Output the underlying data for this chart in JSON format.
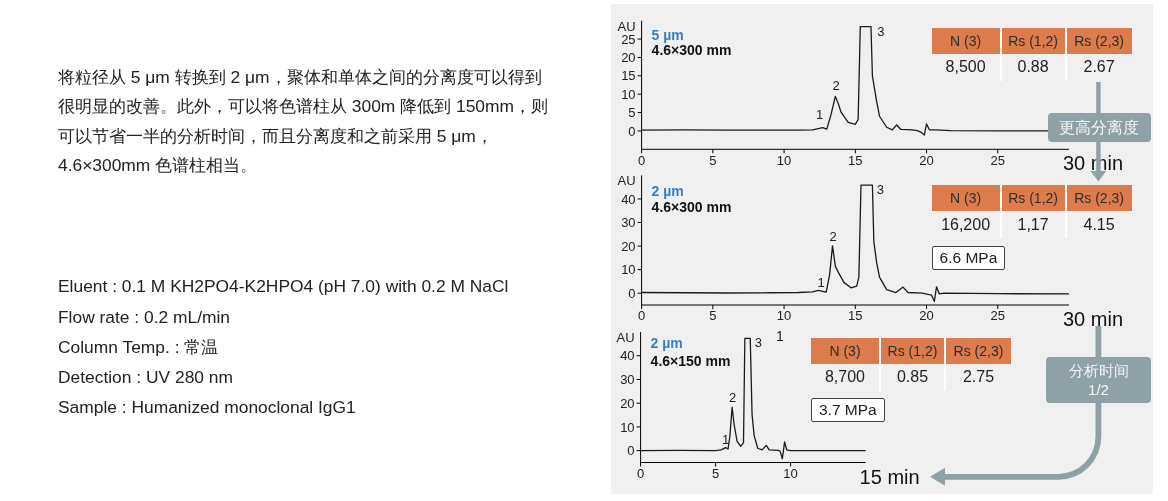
{
  "chart_data": [
    {
      "type": "other",
      "annotations": [
        "将粒径从 5 μm 转换到 2 μm，聚体和单体之间的分离度可以得到很明显的改善。此外，可以将色谱柱从 300m 降低到 150mm，则可以节省一半的分析时间，而且分离度和之前采用 5 μm，4.6×300mm 色谱柱相当。",
        "Eluent : 0.1 M KH2PO4-K2HPO4 (pH 7.0) with 0.2 M NaCl",
        "Flow rate : 0.2 mL/min",
        "Column Temp. : 常温",
        "Detection : UV 280 nm",
        "Sample : Humanized monoclonal IgG1"
      ]
    },
    {
      "type": "line",
      "title": "5 µm",
      "subtitle": "4.6×300 mm",
      "ylabel": "AU",
      "xlabel": "30 min",
      "color": "#1a1a1a",
      "xlim": [
        0,
        30
      ],
      "ylim": [
        -5,
        30
      ],
      "xticks": [
        0,
        5,
        10,
        15,
        20,
        25
      ],
      "yticks": [
        0,
        5,
        10,
        15,
        20,
        25
      ],
      "x": [
        0,
        3,
        6,
        9,
        10,
        11,
        12,
        12.4,
        12.7,
        13.0,
        13.3,
        13.6,
        13.8,
        14.0,
        14.5,
        15.0,
        15.2,
        15.35,
        16.1,
        16.2,
        16.5,
        16.7,
        17.2,
        17.6,
        17.9,
        18.2,
        19.0,
        19.35,
        19.6,
        19.85,
        20.0,
        20.2,
        20.6,
        21.7,
        25,
        28.5
      ],
      "values": [
        0.2,
        0.3,
        0.2,
        0.2,
        0.2,
        0.2,
        0.3,
        0.6,
        0.9,
        0.5,
        4.5,
        9.4,
        7.5,
        5.1,
        2.3,
        1.8,
        3.1,
        28.4,
        28.4,
        15,
        8,
        4,
        1,
        0.3,
        1.6,
        0.4,
        0.3,
        0.1,
        -0.3,
        -1.1,
        1.9,
        0.3,
        0.3,
        0.1,
        0,
        0
      ],
      "annotations": [
        {
          "text": "1",
          "x": 12.7,
          "y": 0.9
        },
        {
          "text": "2",
          "x": 13.6,
          "y": 9.4
        },
        {
          "text": "3",
          "x": 16.1,
          "y": 28.4
        },
        "N (3)",
        "Rs (1,2)",
        "Rs (2,3)",
        "8,500",
        "0.88",
        "2.67"
      ]
    },
    {
      "type": "line",
      "title": "2 µm",
      "subtitle": "4.6×300 mm",
      "ylabel": "AU",
      "xlabel": "30 min",
      "color": "#1a1a1a",
      "xlim": [
        0,
        30
      ],
      "ylim": [
        -5,
        50
      ],
      "xticks": [
        0,
        5,
        10,
        15,
        20,
        25
      ],
      "yticks": [
        0,
        10,
        20,
        30,
        40
      ],
      "x": [
        0,
        3,
        6,
        9,
        11,
        12,
        12.4,
        12.96,
        13.2,
        13.4,
        13.6,
        13.85,
        14.2,
        14.7,
        15.1,
        15.25,
        15.4,
        16.2,
        16.3,
        16.5,
        16.7,
        17.2,
        17.85,
        18.35,
        18.7,
        19.7,
        20.35,
        20.55,
        20.7,
        20.9,
        21.2,
        25,
        30
      ],
      "values": [
        0.3,
        0.2,
        0.1,
        0.2,
        0.3,
        0.6,
        1.2,
        0.5,
        8,
        20.1,
        11.4,
        8.4,
        4.6,
        2.3,
        3.0,
        6.8,
        45.9,
        45.9,
        22,
        12.9,
        6.8,
        1.5,
        0.3,
        2.6,
        0.3,
        0,
        -0.8,
        -3.5,
        2.7,
        -0.3,
        0,
        -0.2,
        -0.3
      ],
      "annotations": [
        {
          "text": "1",
          "x": 12.4,
          "y": 1.2
        },
        {
          "text": "2",
          "x": 13.4,
          "y": 20.1
        },
        {
          "text": "3",
          "x": 16.2,
          "y": 45.9
        },
        "N (3)",
        "Rs (1,2)",
        "Rs (2,3)",
        "16,200",
        "1,17",
        "4.15",
        "6.6 MPa"
      ]
    },
    {
      "type": "line",
      "title": "2 µm",
      "subtitle": "4.6×150 mm",
      "ylabel": "AU",
      "xlabel": "15 min",
      "color": "#1a1a1a",
      "xlim": [
        0,
        15
      ],
      "ylim": [
        -5,
        50
      ],
      "xticks": [
        0,
        5,
        10
      ],
      "yticks": [
        0,
        10,
        20,
        30,
        40
      ],
      "x": [
        0,
        2.5,
        5.0,
        5.36,
        5.67,
        5.83,
        5.95,
        6.1,
        6.24,
        6.43,
        6.67,
        6.86,
        6.95,
        7.31,
        7.43,
        7.57,
        7.81,
        8.1,
        8.38,
        8.57,
        9.2,
        9.31,
        9.45,
        9.6,
        9.74,
        10.0,
        12.5,
        15
      ],
      "values": [
        0,
        0.1,
        0,
        0.3,
        1.3,
        0.7,
        6,
        18.3,
        10.8,
        4.0,
        1.8,
        3.3,
        47.3,
        47.3,
        15.3,
        6.3,
        1.0,
        0.3,
        2.2,
        0.3,
        0.1,
        -0.4,
        -3.4,
        3.7,
        0.3,
        0,
        0,
        0
      ],
      "annotations": [
        {
          "text": "1",
          "x": 5.67,
          "y": 1.3
        },
        {
          "text": "2",
          "x": 6.1,
          "y": 18.3
        },
        {
          "text": "3",
          "x": 7.31,
          "y": 47.3
        },
        "N (3)",
        "Rs (1,2)",
        "Rs (2,3)",
        "8,700",
        "0.85",
        "2.75",
        "3.7 MPa",
        "1"
      ]
    },
    {
      "type": "other",
      "annotations": [
        "更高分离度",
        "分析时间 1/2"
      ]
    }
  ]
}
